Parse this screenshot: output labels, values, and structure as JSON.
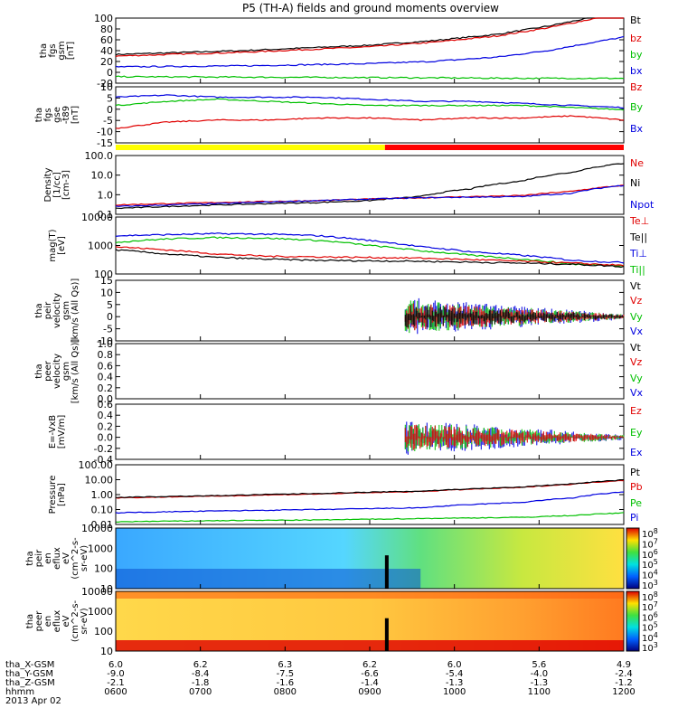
{
  "title": "P5 (TH-A) fields and ground moments overview",
  "colors": {
    "black": "#000000",
    "red": "#e00000",
    "green": "#00c000",
    "blue": "#0000e0",
    "yellow": "#ffff00",
    "barred": "#ff0000"
  },
  "chart_data": [
    {
      "type": "line",
      "ylabel": [
        "tha",
        "fgs",
        "gsm",
        "[nT]"
      ],
      "ylim": [
        -20,
        100
      ],
      "yticks": [
        "100",
        "80",
        "60",
        "40",
        "20",
        "0",
        "-20"
      ],
      "legend": [
        {
          "name": "Bt",
          "color": "black"
        },
        {
          "name": "bz",
          "color": "red"
        },
        {
          "name": "by",
          "color": "green"
        },
        {
          "name": "bx",
          "color": "blue"
        }
      ],
      "series": [
        {
          "name": "Bt",
          "color": "black",
          "x": [
            0,
            0.25,
            0.5,
            0.62,
            0.75,
            0.85,
            0.92,
            1.0
          ],
          "y": [
            33,
            40,
            50,
            58,
            70,
            85,
            98,
            112
          ]
        },
        {
          "name": "bz",
          "color": "red",
          "x": [
            0,
            0.25,
            0.5,
            0.62,
            0.75,
            0.85,
            0.92,
            1.0
          ],
          "y": [
            30,
            37,
            47,
            55,
            67,
            82,
            95,
            110
          ]
        },
        {
          "name": "bx",
          "color": "blue",
          "x": [
            0,
            0.25,
            0.5,
            0.62,
            0.75,
            0.85,
            0.92,
            1.0
          ],
          "y": [
            10,
            12,
            16,
            20,
            28,
            40,
            52,
            65
          ]
        },
        {
          "name": "by",
          "color": "green",
          "x": [
            0,
            0.3,
            0.6,
            0.8,
            1.0
          ],
          "y": [
            -8,
            -9,
            -10,
            -11,
            -11
          ]
        }
      ]
    },
    {
      "type": "line",
      "ylabel": [
        "tha",
        "fgs",
        "gse",
        "-t89",
        "[nT]"
      ],
      "ylim": [
        -17,
        10
      ],
      "yticks": [
        "10",
        "5",
        "0",
        "-5",
        "-10",
        "-15"
      ],
      "legend": [
        {
          "name": "Bz",
          "color": "red"
        },
        {
          "name": "By",
          "color": "green"
        },
        {
          "name": "Bx",
          "color": "blue"
        }
      ],
      "series": [
        {
          "name": "Bx",
          "color": "blue",
          "x": [
            0,
            0.1,
            0.2,
            0.3,
            0.4,
            0.5,
            0.6,
            0.7,
            0.8,
            0.9,
            1.0
          ],
          "y": [
            5,
            6,
            5,
            5,
            5,
            4,
            3,
            3,
            2,
            1,
            0
          ]
        },
        {
          "name": "By",
          "color": "green",
          "x": [
            0,
            0.1,
            0.2,
            0.3,
            0.4,
            0.5,
            0.6,
            0.7,
            0.8,
            0.9,
            1.0
          ],
          "y": [
            1,
            3,
            4,
            3,
            2,
            1,
            1,
            1,
            1,
            0,
            -1
          ]
        },
        {
          "name": "Bz",
          "color": "red",
          "x": [
            0,
            0.1,
            0.2,
            0.3,
            0.4,
            0.5,
            0.6,
            0.7,
            0.8,
            0.9,
            1.0
          ],
          "y": [
            -10,
            -7,
            -6,
            -6,
            -5,
            -5,
            -6,
            -5,
            -5,
            -4,
            -6
          ]
        }
      ]
    },
    {
      "type": "line",
      "scale": "log",
      "ylabel": [
        "Density",
        "[1/cc]",
        "[cm-3]"
      ],
      "ylim": [
        0.1,
        100
      ],
      "yticks": [
        "100.0",
        "10.0",
        "1.0",
        "0.1"
      ],
      "legend": [
        {
          "name": "Ne",
          "color": "red"
        },
        {
          "name": "Ni",
          "color": "black"
        },
        {
          "name": "Npot",
          "color": "blue"
        }
      ],
      "series": [
        {
          "name": "Ni",
          "color": "black",
          "x": [
            0,
            0.2,
            0.4,
            0.5,
            0.6,
            0.7,
            0.8,
            0.9,
            1.0
          ],
          "y": [
            0.2,
            0.3,
            0.4,
            0.5,
            0.8,
            2,
            5,
            14,
            40
          ]
        },
        {
          "name": "Ne",
          "color": "red",
          "x": [
            0,
            0.2,
            0.4,
            0.5,
            0.6,
            0.7,
            0.8,
            0.9,
            1.0
          ],
          "y": [
            0.3,
            0.4,
            0.5,
            0.6,
            0.7,
            0.8,
            0.9,
            1.5,
            3
          ]
        },
        {
          "name": "Npot",
          "color": "blue",
          "x": [
            0,
            0.2,
            0.4,
            0.5,
            0.6,
            0.7,
            0.8,
            0.9,
            1.0
          ],
          "y": [
            0.25,
            0.35,
            0.5,
            0.6,
            0.7,
            0.75,
            0.8,
            1.2,
            3
          ]
        }
      ]
    },
    {
      "type": "line",
      "scale": "log",
      "ylabel": [
        "mag(T)",
        "[eV]"
      ],
      "ylim": [
        100,
        10000
      ],
      "yticks": [
        "10000",
        "1000",
        "100"
      ],
      "legend": [
        {
          "name": "Te⊥",
          "color": "red"
        },
        {
          "name": "Te||",
          "color": "black"
        },
        {
          "name": "Ti⊥",
          "color": "blue"
        },
        {
          "name": "Ti||",
          "color": "green"
        }
      ],
      "series": [
        {
          "name": "Ti⊥",
          "color": "blue",
          "x": [
            0,
            0.1,
            0.2,
            0.3,
            0.4,
            0.5,
            0.6,
            0.7,
            0.8,
            0.9,
            1.0
          ],
          "y": [
            2200,
            2400,
            2600,
            2500,
            2200,
            1500,
            900,
            600,
            450,
            300,
            250
          ]
        },
        {
          "name": "Ti||",
          "color": "green",
          "x": [
            0,
            0.1,
            0.2,
            0.3,
            0.4,
            0.5,
            0.6,
            0.7,
            0.8,
            0.9,
            1.0
          ],
          "y": [
            1300,
            1700,
            1900,
            1800,
            1500,
            1000,
            650,
            450,
            330,
            220,
            200
          ]
        },
        {
          "name": "Te⊥",
          "color": "red",
          "x": [
            0,
            0.1,
            0.2,
            0.3,
            0.4,
            0.5,
            0.6,
            0.7,
            0.8,
            0.9,
            1.0
          ],
          "y": [
            900,
            700,
            500,
            420,
            400,
            380,
            360,
            320,
            280,
            240,
            200
          ]
        },
        {
          "name": "Te||",
          "color": "black",
          "x": [
            0,
            0.1,
            0.2,
            0.3,
            0.4,
            0.5,
            0.6,
            0.7,
            0.8,
            0.9,
            1.0
          ],
          "y": [
            700,
            500,
            380,
            330,
            300,
            290,
            280,
            260,
            240,
            220,
            180
          ]
        }
      ]
    },
    {
      "type": "line",
      "ylabel": [
        "tha",
        "peir",
        "velocity",
        "gsm",
        "[km/s (All Qs)]"
      ],
      "ylim": [
        -10,
        15
      ],
      "yticks": [
        "15",
        "10",
        "5",
        "0",
        "-5",
        "-10"
      ],
      "legend": [
        {
          "name": "Vt",
          "color": "black"
        },
        {
          "name": "Vz",
          "color": "red"
        },
        {
          "name": "Vy",
          "color": "green"
        },
        {
          "name": "Vx",
          "color": "blue"
        }
      ],
      "noise_start": 0.57
    },
    {
      "type": "line",
      "ylabel": [
        "tha",
        "peer",
        "velocity",
        "gsm",
        "[km/s (All Qs)]"
      ],
      "ylim": [
        0,
        1
      ],
      "yticks": [
        "1.0",
        "0.8",
        "0.6",
        "0.4",
        "0.2",
        "0.0"
      ],
      "legend": [
        {
          "name": "Vt",
          "color": "black"
        },
        {
          "name": "Vz",
          "color": "red"
        },
        {
          "name": "Vy",
          "color": "green"
        },
        {
          "name": "Vx",
          "color": "blue"
        }
      ],
      "series": []
    },
    {
      "type": "line",
      "ylabel": [
        "E=-VxB",
        "[mV/m]"
      ],
      "ylim": [
        -0.4,
        0.6
      ],
      "yticks": [
        "0.6",
        "0.4",
        "0.2",
        "0.0",
        "-0.2",
        "-0.4"
      ],
      "legend": [
        {
          "name": "Ez",
          "color": "red"
        },
        {
          "name": "Ey",
          "color": "green"
        },
        {
          "name": "Ex",
          "color": "blue"
        }
      ],
      "noise_start": 0.57
    },
    {
      "type": "line",
      "scale": "log",
      "ylabel": [
        "Pressure",
        "[nPa]"
      ],
      "ylim": [
        0.01,
        100
      ],
      "yticks": [
        "100.00",
        "10.00",
        "1.00",
        "0.10",
        "0.01"
      ],
      "legend": [
        {
          "name": "Pt",
          "color": "black"
        },
        {
          "name": "Pb",
          "color": "red"
        },
        {
          "name": "Pe",
          "color": "green"
        },
        {
          "name": "Pi",
          "color": "blue"
        }
      ],
      "series": [
        {
          "name": "Pb",
          "color": "red",
          "x": [
            0,
            0.2,
            0.4,
            0.6,
            0.8,
            0.9,
            1.0
          ],
          "y": [
            0.6,
            0.8,
            1.1,
            1.6,
            3,
            5,
            9
          ]
        },
        {
          "name": "Pt",
          "color": "black",
          "x": [
            0,
            0.2,
            0.4,
            0.6,
            0.8,
            0.9,
            1.0
          ],
          "y": [
            0.65,
            0.85,
            1.2,
            1.7,
            3.2,
            5.3,
            9.5
          ]
        },
        {
          "name": "Pi",
          "color": "blue",
          "x": [
            0,
            0.2,
            0.4,
            0.6,
            0.8,
            0.9,
            1.0
          ],
          "y": [
            0.06,
            0.08,
            0.1,
            0.13,
            0.3,
            0.6,
            1.5
          ]
        },
        {
          "name": "Pe",
          "color": "green",
          "x": [
            0,
            0.2,
            0.4,
            0.6,
            0.8,
            0.9,
            1.0
          ],
          "y": [
            0.015,
            0.018,
            0.02,
            0.025,
            0.03,
            0.04,
            0.06
          ]
        }
      ]
    },
    {
      "type": "heatmap",
      "ylabel": [
        "tha",
        "peir",
        "en",
        "eflux",
        "eV",
        "(cm^2-s-",
        "sr-eV)"
      ],
      "yticks": [
        "10000",
        "1000",
        "100",
        "10"
      ],
      "colorbar": [
        "10^8",
        "10^7",
        "10^6",
        "10^5",
        "10^4",
        "10^3"
      ]
    },
    {
      "type": "heatmap",
      "ylabel": [
        "tha",
        "peer",
        "en",
        "eflux",
        "eV",
        "(cm^2-s-",
        "sr-eV)"
      ],
      "yticks": [
        "10000",
        "1000",
        "100",
        "10"
      ],
      "colorbar": [
        "10^8",
        "10^7",
        "10^6",
        "10^5",
        "10^4",
        "10^3"
      ]
    }
  ],
  "x_axis": {
    "rows": [
      {
        "label": "tha_X-GSM",
        "values": [
          "6.0",
          "6.2",
          "6.3",
          "6.2",
          "6.0",
          "5.6",
          "4.9"
        ]
      },
      {
        "label": "tha_Y-GSM",
        "values": [
          "-9.0",
          "-8.4",
          "-7.5",
          "-6.6",
          "-5.4",
          "-4.0",
          "-2.4"
        ]
      },
      {
        "label": "tha_Z-GSM",
        "values": [
          "-2.1",
          "-1.8",
          "-1.6",
          "-1.4",
          "-1.3",
          "-1.3",
          "-1.2"
        ]
      },
      {
        "label": "hhmm",
        "values": [
          "0600",
          "0700",
          "0800",
          "0900",
          "1000",
          "1100",
          "1200"
        ]
      }
    ],
    "date": "2013 Apr 02"
  }
}
